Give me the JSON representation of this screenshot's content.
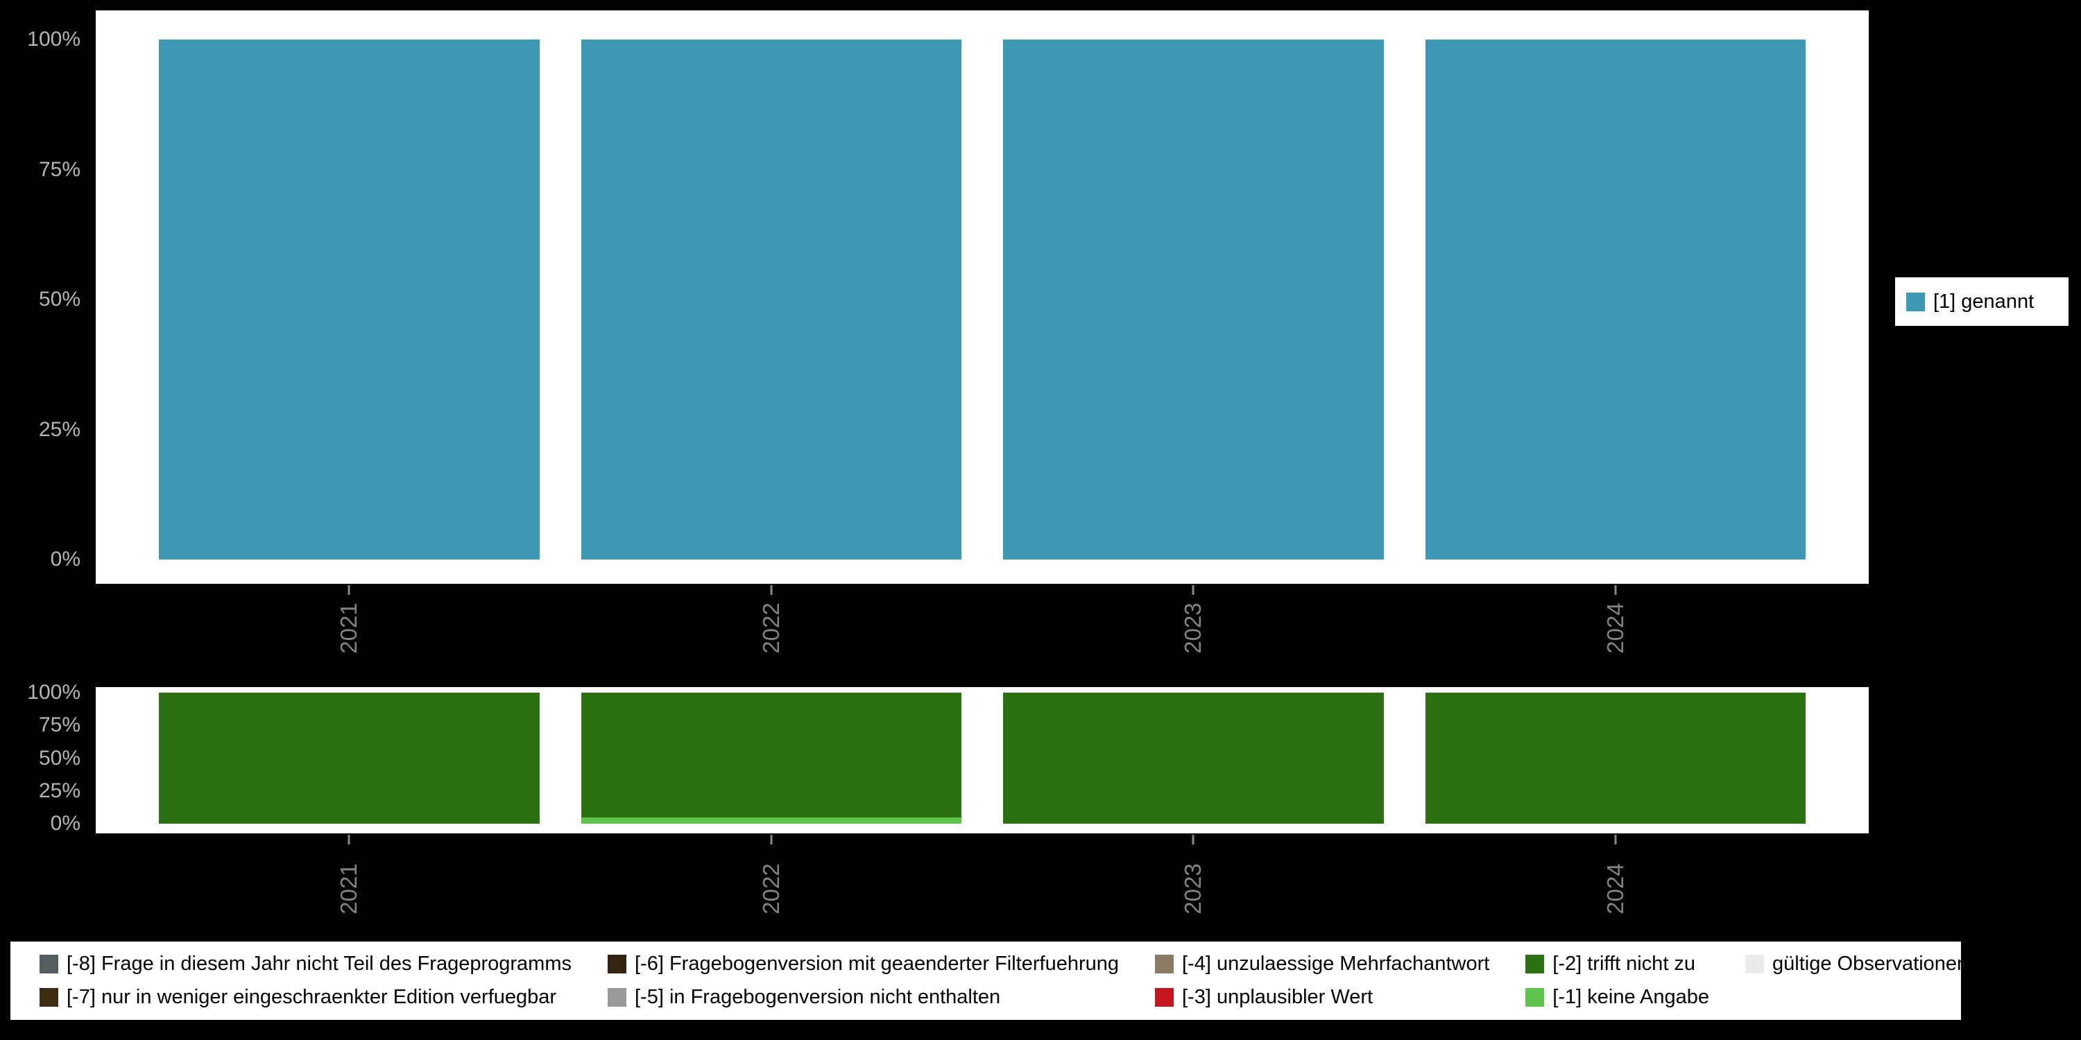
{
  "colors": {
    "background": "#000000",
    "panel": "#ffffff",
    "axis_tick_text": "#b5b5b5",
    "axis_year_text": "#848484",
    "axis_tick_mark": "#888888",
    "valid_teal": "#3e99b4",
    "dark_green": "#2c7213",
    "light_green": "#5ec44d"
  },
  "legend_right": {
    "items": [
      {
        "label": "[1] genannt",
        "color": "#3e99b4"
      }
    ]
  },
  "legend_bottom": {
    "items": [
      {
        "label": "[-8] Frage in diesem Jahr nicht Teil des Frageprogramms",
        "color": "#545d60"
      },
      {
        "label": "[-7] nur in weniger eingeschraenkter Edition verfuegbar",
        "color": "#3f2d13"
      },
      {
        "label": "[-6] Fragebogenversion mit geaenderter Filterfuehrung",
        "color": "#33230f"
      },
      {
        "label": "[-5] in Fragebogenversion nicht enthalten",
        "color": "#999999"
      },
      {
        "label": "[-4] unzulaessige Mehrfachantwort",
        "color": "#8c7b64"
      },
      {
        "label": "[-3] unplausibler Wert",
        "color": "#c4161c"
      },
      {
        "label": "[-2] trifft nicht zu",
        "color": "#2c7213"
      },
      {
        "label": "[-1] keine Angabe",
        "color": "#5ec44d"
      },
      {
        "label": "gültige Observationen",
        "color": "#ebebeb"
      }
    ]
  },
  "chart_data": [
    {
      "type": "bar",
      "stacked": true,
      "orientation": "vertical",
      "title": "",
      "xlabel": "",
      "ylabel": "",
      "categories": [
        "2021",
        "2022",
        "2023",
        "2024"
      ],
      "series": [
        {
          "name": "[1] genannt",
          "color": "#3e99b4",
          "values": [
            100,
            100,
            100,
            100
          ]
        }
      ],
      "y_ticks": [
        "100%",
        "75%",
        "50%",
        "25%",
        "0%"
      ],
      "ylim": [
        0,
        100
      ],
      "grid": false,
      "legend_position": "right"
    },
    {
      "type": "bar",
      "stacked": true,
      "orientation": "vertical",
      "title": "",
      "xlabel": "",
      "ylabel": "",
      "categories": [
        "2021",
        "2022",
        "2023",
        "2024"
      ],
      "series": [
        {
          "name": "[-1] keine Angabe",
          "color": "#5ec44d",
          "values": [
            0,
            5,
            0,
            0
          ]
        },
        {
          "name": "[-2] trifft nicht zu",
          "color": "#2c7213",
          "values": [
            100,
            95,
            100,
            100
          ]
        }
      ],
      "y_ticks": [
        "100%",
        "75%",
        "50%",
        "25%",
        "0%"
      ],
      "ylim": [
        0,
        100
      ],
      "grid": false,
      "legend_position": "bottom"
    }
  ]
}
